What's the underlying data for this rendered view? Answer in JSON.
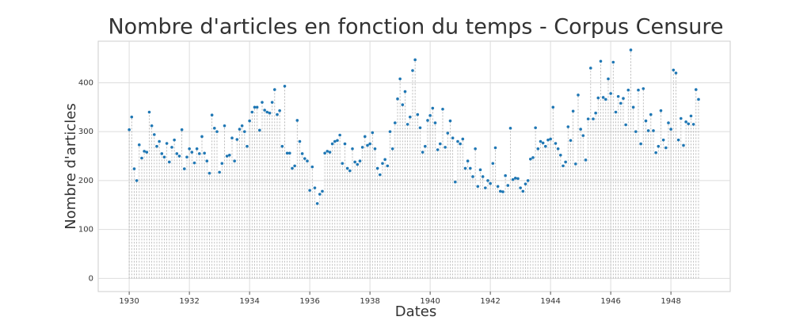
{
  "chart_data": {
    "type": "scatter",
    "title": "Nombre d'articles en fonction du temps - Corpus Censure",
    "x_label": "Dates",
    "y_label": "Nombre d'articles",
    "xlim": [
      1928.97,
      1949.97
    ],
    "ylim": [
      -27,
      485
    ],
    "xticks": [
      1930,
      1932,
      1934,
      1936,
      1938,
      1940,
      1942,
      1944,
      1946,
      1948
    ],
    "yticks": [
      0,
      100,
      200,
      300,
      400
    ],
    "grid": true,
    "stems": true,
    "color": "#1f77b4",
    "x": [
      1930,
      1930.083,
      1930.167,
      1930.25,
      1930.333,
      1930.417,
      1930.5,
      1930.583,
      1930.667,
      1930.75,
      1930.833,
      1930.917,
      1931,
      1931.083,
      1931.167,
      1931.25,
      1931.333,
      1931.417,
      1931.5,
      1931.583,
      1931.667,
      1931.75,
      1931.833,
      1931.917,
      1932,
      1932.083,
      1932.167,
      1932.25,
      1932.333,
      1932.417,
      1932.5,
      1932.583,
      1932.667,
      1932.75,
      1932.833,
      1932.917,
      1933,
      1933.083,
      1933.167,
      1933.25,
      1933.333,
      1933.417,
      1933.5,
      1933.583,
      1933.667,
      1933.75,
      1933.833,
      1933.917,
      1934,
      1934.083,
      1934.167,
      1934.25,
      1934.333,
      1934.417,
      1934.5,
      1934.583,
      1934.667,
      1934.75,
      1934.833,
      1934.917,
      1935,
      1935.083,
      1935.167,
      1935.25,
      1935.333,
      1935.417,
      1935.5,
      1935.583,
      1935.667,
      1935.75,
      1935.833,
      1935.917,
      1936,
      1936.083,
      1936.167,
      1936.25,
      1936.333,
      1936.417,
      1936.5,
      1936.583,
      1936.667,
      1936.75,
      1936.833,
      1936.917,
      1937,
      1937.083,
      1937.167,
      1937.25,
      1937.333,
      1937.417,
      1937.5,
      1937.583,
      1937.667,
      1937.75,
      1937.833,
      1937.917,
      1938,
      1938.083,
      1938.167,
      1938.25,
      1938.333,
      1938.417,
      1938.5,
      1938.583,
      1938.667,
      1938.75,
      1938.833,
      1938.917,
      1939,
      1939.083,
      1939.167,
      1939.25,
      1939.333,
      1939.417,
      1939.5,
      1939.583,
      1939.667,
      1939.75,
      1939.833,
      1939.917,
      1940,
      1940.083,
      1940.167,
      1940.25,
      1940.333,
      1940.417,
      1940.5,
      1940.583,
      1940.667,
      1940.75,
      1940.833,
      1940.917,
      1941,
      1941.083,
      1941.167,
      1941.25,
      1941.333,
      1941.417,
      1941.5,
      1941.583,
      1941.667,
      1941.75,
      1941.833,
      1941.917,
      1942,
      1942.083,
      1942.167,
      1942.25,
      1942.333,
      1942.417,
      1942.5,
      1942.583,
      1942.667,
      1942.75,
      1942.833,
      1942.917,
      1943,
      1943.083,
      1943.167,
      1943.25,
      1943.333,
      1943.417,
      1943.5,
      1943.583,
      1943.667,
      1943.75,
      1943.833,
      1943.917,
      1944,
      1944.083,
      1944.167,
      1944.25,
      1944.333,
      1944.417,
      1944.5,
      1944.583,
      1944.667,
      1944.75,
      1944.833,
      1944.917,
      1945,
      1945.083,
      1945.167,
      1945.25,
      1945.333,
      1945.417,
      1945.5,
      1945.583,
      1945.667,
      1945.75,
      1945.833,
      1945.917,
      1946,
      1946.083,
      1946.167,
      1946.25,
      1946.333,
      1946.417,
      1946.5,
      1946.583,
      1946.667,
      1946.75,
      1946.833,
      1946.917,
      1947,
      1947.083,
      1947.167,
      1947.25,
      1947.333,
      1947.417,
      1947.5,
      1947.583,
      1947.667,
      1947.75,
      1947.833,
      1947.917,
      1948,
      1948.083,
      1948.167,
      1948.25,
      1948.333,
      1948.417,
      1948.5,
      1948.583,
      1948.667,
      1948.75,
      1948.833,
      1948.917
    ],
    "values": [
      304,
      330,
      224,
      200,
      273,
      246,
      260,
      258,
      340,
      312,
      294,
      270,
      280,
      255,
      248,
      276,
      238,
      268,
      283,
      255,
      250,
      304,
      224,
      248,
      265,
      258,
      236,
      265,
      255,
      290,
      256,
      240,
      215,
      334,
      307,
      300,
      217,
      235,
      312,
      250,
      252,
      287,
      240,
      284,
      305,
      312,
      300,
      270,
      322,
      340,
      350,
      350,
      303,
      360,
      344,
      340,
      338,
      360,
      386,
      335,
      343,
      270,
      393,
      256,
      256,
      225,
      230,
      323,
      280,
      255,
      245,
      240,
      180,
      228,
      185,
      153,
      172,
      178,
      256,
      260,
      258,
      275,
      280,
      282,
      293,
      235,
      275,
      225,
      220,
      265,
      238,
      233,
      240,
      268,
      290,
      272,
      275,
      298,
      265,
      225,
      212,
      235,
      243,
      230,
      300,
      265,
      318,
      367,
      408,
      355,
      382,
      315,
      330,
      425,
      447,
      335,
      308,
      258,
      270,
      323,
      333,
      348,
      318,
      263,
      275,
      346,
      268,
      297,
      322,
      287,
      197,
      280,
      275,
      285,
      225,
      240,
      225,
      208,
      265,
      188,
      222,
      208,
      185,
      200,
      194,
      235,
      267,
      188,
      178,
      177,
      210,
      190,
      307,
      202,
      205,
      204,
      185,
      178,
      193,
      200,
      244,
      247,
      308,
      265,
      280,
      277,
      270,
      283,
      285,
      350,
      276,
      265,
      252,
      230,
      238,
      310,
      282,
      342,
      234,
      375,
      305,
      292,
      242,
      326,
      430,
      326,
      338,
      369,
      444,
      370,
      366,
      408,
      378,
      442,
      340,
      372,
      358,
      368,
      314,
      385,
      467,
      350,
      300,
      385,
      275,
      388,
      322,
      302,
      335,
      302,
      257,
      270,
      343,
      283,
      267,
      318,
      305,
      426,
      420,
      283,
      327,
      272,
      320,
      316,
      332,
      315,
      386,
      366
    ]
  }
}
